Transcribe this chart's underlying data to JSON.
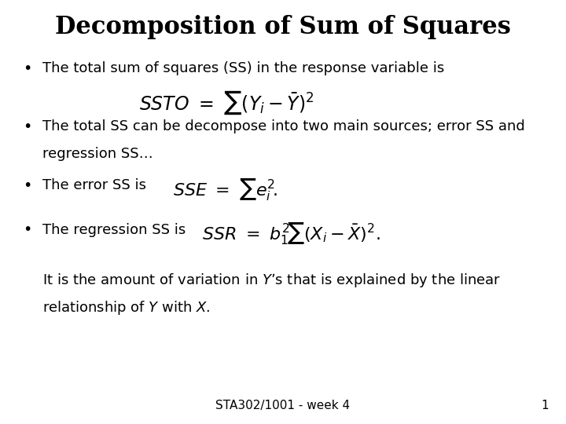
{
  "title": "Decomposition of Sum of Squares",
  "title_fontsize": 22,
  "title_fontweight": "bold",
  "bg_color": "#ffffff",
  "text_color": "#000000",
  "bullet1_text": "The total sum of squares (SS) in the response variable is",
  "bullet2_text1": "The total SS can be decompose into two main sources; error SS and",
  "bullet2_text2": "regression SS…",
  "bullet3_pre": "The error SS is  ",
  "bullet4_pre": "The regression SS is  ",
  "extra_text1": "It is the amount of variation in $Y$’s that is explained by the linear",
  "extra_text2": "relationship of $Y$ with $X$.",
  "footer": "STA302/1001 - week 4",
  "page_num": "1",
  "font_size_body": 13,
  "font_size_formula": 14,
  "font_size_footer": 11
}
